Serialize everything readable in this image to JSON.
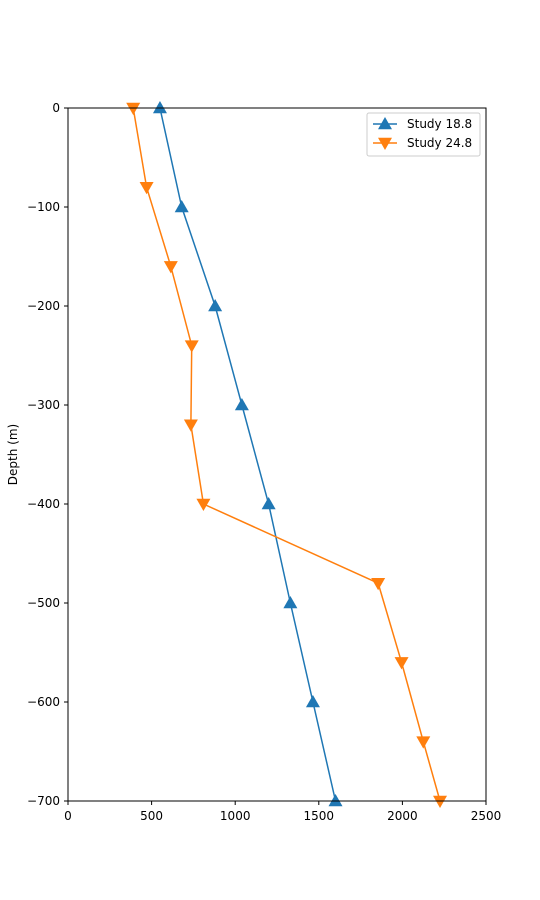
{
  "chart_data": {
    "type": "line",
    "title": "",
    "xlabel": "",
    "ylabel": "Depth (m)",
    "xlim": [
      0,
      2500
    ],
    "ylim": [
      -700,
      0
    ],
    "x_ticks": [
      0,
      500,
      1000,
      1500,
      2000,
      2500
    ],
    "x_tick_labels": [
      "0",
      "500",
      "1000",
      "1500",
      "2000",
      "2500"
    ],
    "y_ticks": [
      0,
      -100,
      -200,
      -300,
      -400,
      -500,
      -600,
      -700
    ],
    "y_tick_labels": [
      "0",
      "−100",
      "−200",
      "−300",
      "−400",
      "−500",
      "−600",
      "−700"
    ],
    "grid": false,
    "legend_position": "top-right",
    "series": [
      {
        "name": "Study 18.8",
        "color": "#1f77b4",
        "marker": "triangle-up",
        "points": [
          [
            550,
            0
          ],
          [
            680,
            -100
          ],
          [
            880,
            -200
          ],
          [
            1040,
            -300
          ],
          [
            1200,
            -400
          ],
          [
            1330,
            -500
          ],
          [
            1465,
            -600
          ],
          [
            1600,
            -700
          ]
        ]
      },
      {
        "name": "Study 24.8",
        "color": "#ff7f0e",
        "marker": "triangle-down",
        "points": [
          [
            390,
            0
          ],
          [
            470,
            -80
          ],
          [
            615,
            -160
          ],
          [
            740,
            -240
          ],
          [
            735,
            -320
          ],
          [
            810,
            -400
          ],
          [
            1855,
            -480
          ],
          [
            1995,
            -560
          ],
          [
            2125,
            -640
          ],
          [
            2225,
            -700
          ]
        ]
      }
    ]
  }
}
